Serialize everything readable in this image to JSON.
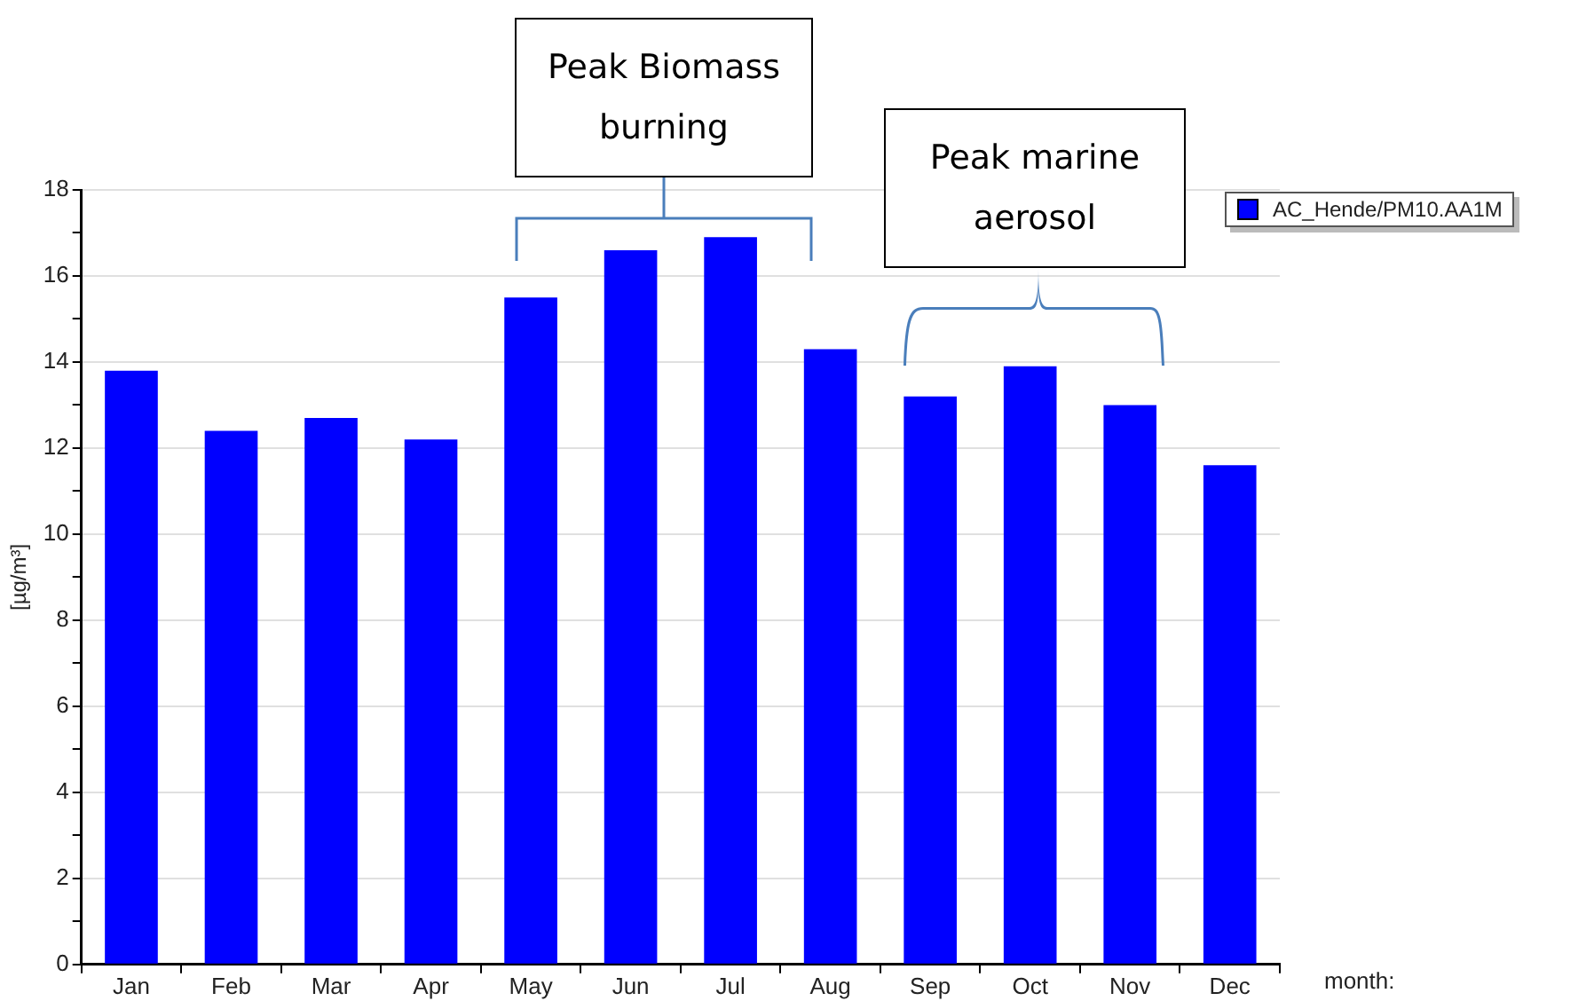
{
  "chart_data": {
    "type": "bar",
    "xlabel": "month:",
    "ylabel": "[µg/m³]",
    "categories": [
      "Jan",
      "Feb",
      "Mar",
      "Apr",
      "May",
      "Jun",
      "Jul",
      "Aug",
      "Sep",
      "Oct",
      "Nov",
      "Dec"
    ],
    "series": [
      {
        "name": "AC_Hende/PM10.AA1M",
        "color": "#0000ff",
        "values": [
          13.8,
          12.4,
          12.7,
          12.2,
          15.5,
          16.6,
          16.9,
          14.3,
          13.2,
          13.9,
          13.0,
          11.6
        ]
      }
    ],
    "ylim": [
      0,
      18
    ],
    "yticks": [
      0,
      {
        "value": 1,
        "label": null
      },
      2,
      {
        "value": 3,
        "label": null
      },
      4,
      {
        "value": 5,
        "label": null
      },
      6,
      {
        "value": 7,
        "label": null
      },
      8,
      {
        "value": 9,
        "label": null
      },
      10,
      {
        "value": 11,
        "label": null
      },
      12,
      {
        "value": 13,
        "label": null
      },
      14,
      {
        "value": 15,
        "label": null
      },
      16,
      {
        "value": 17,
        "label": null
      },
      18
    ],
    "grid": "y",
    "legend": "top right",
    "annotations": [
      "Peak Biomass burning",
      "Peak marine aerosol"
    ]
  }
}
